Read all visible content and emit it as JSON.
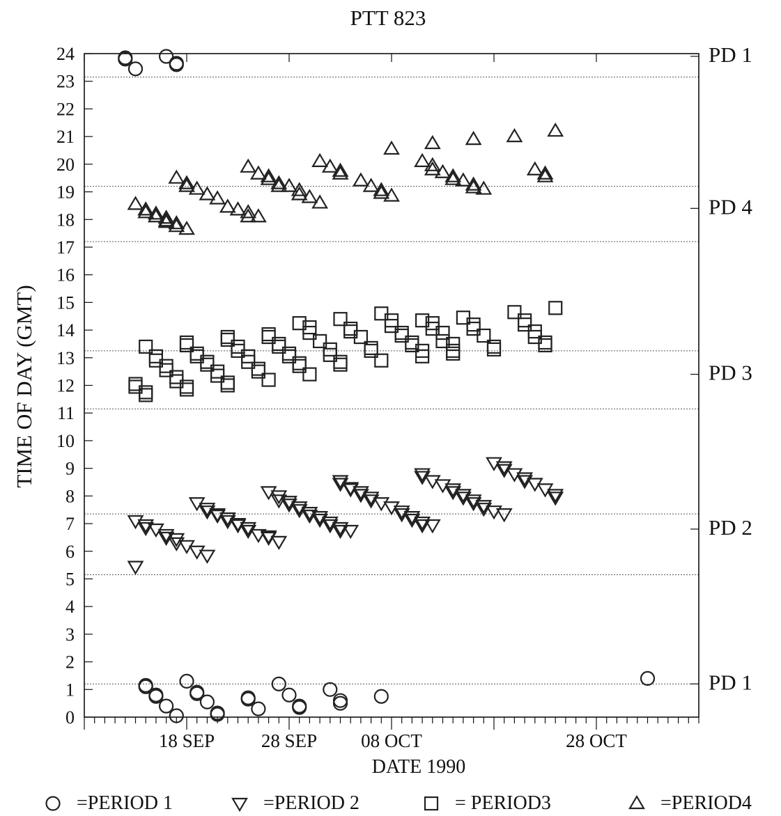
{
  "chart_data": {
    "type": "scatter",
    "title": "PTT 823",
    "xlabel": "DATE 1990",
    "ylabel": "TIME OF DAY (GMT)",
    "x_tick_labels": [
      {
        "date": "1990-09-18",
        "label": "18 SEP"
      },
      {
        "date": "1990-09-28",
        "label": "28 SEP"
      },
      {
        "date": "1990-10-08",
        "label": "08 OCT"
      },
      {
        "date": "1990-10-28",
        "label": "28 OCT"
      }
    ],
    "xlim": [
      "1990-09-08",
      "1990-11-07"
    ],
    "ylim": [
      0,
      24
    ],
    "y_ticks": [
      0,
      1,
      2,
      3,
      4,
      5,
      6,
      7,
      8,
      9,
      10,
      11,
      12,
      13,
      14,
      15,
      16,
      17,
      18,
      19,
      20,
      21,
      22,
      23,
      24
    ],
    "period_boundaries": [
      1.2,
      5.15,
      7.35,
      11.15,
      13.25,
      17.2,
      19.2,
      23.15
    ],
    "right_labels": [
      {
        "label": "PD 1",
        "y": 23.7
      },
      {
        "label": "PD 4",
        "y": 18.2
      },
      {
        "label": "PD 3",
        "y": 12.2
      },
      {
        "label": "PD 2",
        "y": 6.6
      },
      {
        "label": "PD 1",
        "y": 1.0
      }
    ],
    "legend": [
      {
        "symbol": "○",
        "text": "=PERIOD 1"
      },
      {
        "symbol": "▽",
        "text": "=PERIOD 2"
      },
      {
        "symbol": "□",
        "text": "= PERIOD3"
      },
      {
        "symbol": "△",
        "text": "=PERIOD4"
      }
    ],
    "legend_position": "bottom",
    "series": [
      {
        "name": "PERIOD 1",
        "marker": "circle",
        "points": [
          [
            "1990-09-12",
            23.85
          ],
          [
            "1990-09-12",
            23.8
          ],
          [
            "1990-09-13",
            23.45
          ],
          [
            "1990-09-16",
            23.9
          ],
          [
            "1990-09-17",
            23.65
          ],
          [
            "1990-09-17",
            23.6
          ],
          [
            "1990-09-14",
            1.15
          ],
          [
            "1990-09-14",
            1.1
          ],
          [
            "1990-09-15",
            0.8
          ],
          [
            "1990-09-15",
            0.75
          ],
          [
            "1990-09-16",
            0.4
          ],
          [
            "1990-09-17",
            0.05
          ],
          [
            "1990-09-18",
            1.3
          ],
          [
            "1990-09-19",
            0.9
          ],
          [
            "1990-09-19",
            0.85
          ],
          [
            "1990-09-20",
            0.55
          ],
          [
            "1990-09-21",
            0.15
          ],
          [
            "1990-09-21",
            0.1
          ],
          [
            "1990-09-24",
            0.7
          ],
          [
            "1990-09-24",
            0.65
          ],
          [
            "1990-09-25",
            0.3
          ],
          [
            "1990-09-27",
            1.2
          ],
          [
            "1990-09-28",
            0.8
          ],
          [
            "1990-09-29",
            0.4
          ],
          [
            "1990-09-29",
            0.35
          ],
          [
            "1990-10-02",
            1.0
          ],
          [
            "1990-10-03",
            0.6
          ],
          [
            "1990-10-03",
            0.5
          ],
          [
            "1990-10-07",
            0.75
          ],
          [
            "1990-11-02",
            1.4
          ]
        ]
      },
      {
        "name": "PERIOD 2",
        "marker": "triangle-down",
        "points": [
          [
            "1990-09-13",
            5.45
          ],
          [
            "1990-09-13",
            7.1
          ],
          [
            "1990-09-14",
            6.95
          ],
          [
            "1990-09-14",
            6.85
          ],
          [
            "1990-09-15",
            6.8
          ],
          [
            "1990-09-16",
            6.6
          ],
          [
            "1990-09-16",
            6.5
          ],
          [
            "1990-09-17",
            6.45
          ],
          [
            "1990-09-17",
            6.3
          ],
          [
            "1990-09-18",
            6.2
          ],
          [
            "1990-09-19",
            6.0
          ],
          [
            "1990-09-20",
            5.85
          ],
          [
            "1990-09-19",
            7.75
          ],
          [
            "1990-09-20",
            7.55
          ],
          [
            "1990-09-20",
            7.45
          ],
          [
            "1990-09-21",
            7.35
          ],
          [
            "1990-09-21",
            7.3
          ],
          [
            "1990-09-22",
            7.2
          ],
          [
            "1990-09-22",
            7.1
          ],
          [
            "1990-09-23",
            7.0
          ],
          [
            "1990-09-23",
            6.95
          ],
          [
            "1990-09-24",
            6.85
          ],
          [
            "1990-09-24",
            6.75
          ],
          [
            "1990-09-25",
            6.6
          ],
          [
            "1990-09-26",
            6.55
          ],
          [
            "1990-09-26",
            6.5
          ],
          [
            "1990-09-27",
            6.35
          ],
          [
            "1990-09-26",
            8.15
          ],
          [
            "1990-09-27",
            8.0
          ],
          [
            "1990-09-27",
            7.85
          ],
          [
            "1990-09-28",
            7.8
          ],
          [
            "1990-09-28",
            7.7
          ],
          [
            "1990-09-29",
            7.6
          ],
          [
            "1990-09-29",
            7.5
          ],
          [
            "1990-09-30",
            7.4
          ],
          [
            "1990-09-30",
            7.3
          ],
          [
            "1990-10-01",
            7.25
          ],
          [
            "1990-10-01",
            7.15
          ],
          [
            "1990-10-02",
            7.05
          ],
          [
            "1990-10-02",
            6.95
          ],
          [
            "1990-10-03",
            6.85
          ],
          [
            "1990-10-03",
            6.75
          ],
          [
            "1990-10-04",
            6.75
          ],
          [
            "1990-10-03",
            8.55
          ],
          [
            "1990-10-03",
            8.45
          ],
          [
            "1990-10-04",
            8.3
          ],
          [
            "1990-10-04",
            8.25
          ],
          [
            "1990-10-05",
            8.15
          ],
          [
            "1990-10-05",
            8.05
          ],
          [
            "1990-10-06",
            7.95
          ],
          [
            "1990-10-06",
            7.85
          ],
          [
            "1990-10-07",
            7.75
          ],
          [
            "1990-10-08",
            7.6
          ],
          [
            "1990-10-09",
            7.45
          ],
          [
            "1990-10-09",
            7.35
          ],
          [
            "1990-10-10",
            7.25
          ],
          [
            "1990-10-10",
            7.15
          ],
          [
            "1990-10-11",
            7.05
          ],
          [
            "1990-10-11",
            6.95
          ],
          [
            "1990-10-12",
            6.95
          ],
          [
            "1990-10-11",
            8.8
          ],
          [
            "1990-10-11",
            8.7
          ],
          [
            "1990-10-12",
            8.55
          ],
          [
            "1990-10-13",
            8.4
          ],
          [
            "1990-10-14",
            8.25
          ],
          [
            "1990-10-14",
            8.15
          ],
          [
            "1990-10-15",
            8.05
          ],
          [
            "1990-10-15",
            7.95
          ],
          [
            "1990-10-16",
            7.85
          ],
          [
            "1990-10-16",
            7.75
          ],
          [
            "1990-10-17",
            7.65
          ],
          [
            "1990-10-17",
            7.55
          ],
          [
            "1990-10-18",
            7.45
          ],
          [
            "1990-10-19",
            7.35
          ],
          [
            "1990-10-18",
            9.2
          ],
          [
            "1990-10-19",
            9.05
          ],
          [
            "1990-10-19",
            8.95
          ],
          [
            "1990-10-20",
            8.8
          ],
          [
            "1990-10-21",
            8.65
          ],
          [
            "1990-10-21",
            8.55
          ],
          [
            "1990-10-22",
            8.45
          ],
          [
            "1990-10-23",
            8.25
          ],
          [
            "1990-10-24",
            8.05
          ],
          [
            "1990-10-24",
            7.95
          ]
        ]
      },
      {
        "name": "PERIOD3",
        "marker": "square",
        "points": [
          [
            "1990-09-13",
            12.05
          ],
          [
            "1990-09-13",
            11.95
          ],
          [
            "1990-09-14",
            11.75
          ],
          [
            "1990-09-14",
            11.65
          ],
          [
            "1990-09-14",
            13.4
          ],
          [
            "1990-09-15",
            13.05
          ],
          [
            "1990-09-15",
            12.9
          ],
          [
            "1990-09-16",
            12.7
          ],
          [
            "1990-09-16",
            12.55
          ],
          [
            "1990-09-17",
            12.3
          ],
          [
            "1990-09-17",
            12.15
          ],
          [
            "1990-09-18",
            11.95
          ],
          [
            "1990-09-18",
            11.85
          ],
          [
            "1990-09-18",
            13.55
          ],
          [
            "1990-09-18",
            13.45
          ],
          [
            "1990-09-19",
            13.15
          ],
          [
            "1990-09-19",
            13.05
          ],
          [
            "1990-09-20",
            12.85
          ],
          [
            "1990-09-20",
            12.75
          ],
          [
            "1990-09-21",
            12.5
          ],
          [
            "1990-09-21",
            12.35
          ],
          [
            "1990-09-22",
            12.1
          ],
          [
            "1990-09-22",
            12.0
          ],
          [
            "1990-09-22",
            13.75
          ],
          [
            "1990-09-22",
            13.65
          ],
          [
            "1990-09-23",
            13.4
          ],
          [
            "1990-09-23",
            13.25
          ],
          [
            "1990-09-24",
            13.05
          ],
          [
            "1990-09-24",
            12.85
          ],
          [
            "1990-09-25",
            12.6
          ],
          [
            "1990-09-25",
            12.5
          ],
          [
            "1990-09-26",
            12.2
          ],
          [
            "1990-09-26",
            13.85
          ],
          [
            "1990-09-26",
            13.75
          ],
          [
            "1990-09-27",
            13.5
          ],
          [
            "1990-09-27",
            13.4
          ],
          [
            "1990-09-28",
            13.15
          ],
          [
            "1990-09-28",
            13.05
          ],
          [
            "1990-09-29",
            12.8
          ],
          [
            "1990-09-29",
            12.7
          ],
          [
            "1990-09-30",
            12.4
          ],
          [
            "1990-09-29",
            14.25
          ],
          [
            "1990-09-30",
            14.1
          ],
          [
            "1990-09-30",
            13.9
          ],
          [
            "1990-10-01",
            13.6
          ],
          [
            "1990-10-02",
            13.3
          ],
          [
            "1990-10-02",
            13.1
          ],
          [
            "1990-10-03",
            12.85
          ],
          [
            "1990-10-03",
            12.75
          ],
          [
            "1990-10-03",
            14.4
          ],
          [
            "1990-10-04",
            14.05
          ],
          [
            "1990-10-04",
            13.95
          ],
          [
            "1990-10-05",
            13.75
          ],
          [
            "1990-10-06",
            13.35
          ],
          [
            "1990-10-06",
            13.25
          ],
          [
            "1990-10-07",
            12.9
          ],
          [
            "1990-10-07",
            14.6
          ],
          [
            "1990-10-08",
            14.35
          ],
          [
            "1990-10-08",
            14.15
          ],
          [
            "1990-10-09",
            13.9
          ],
          [
            "1990-10-09",
            13.8
          ],
          [
            "1990-10-10",
            13.55
          ],
          [
            "1990-10-10",
            13.45
          ],
          [
            "1990-10-11",
            13.25
          ],
          [
            "1990-10-11",
            13.05
          ],
          [
            "1990-10-11",
            14.35
          ],
          [
            "1990-10-12",
            14.25
          ],
          [
            "1990-10-12",
            14.05
          ],
          [
            "1990-10-13",
            13.9
          ],
          [
            "1990-10-13",
            13.6
          ],
          [
            "1990-10-14",
            13.5
          ],
          [
            "1990-10-14",
            13.25
          ],
          [
            "1990-10-14",
            13.15
          ],
          [
            "1990-10-15",
            14.45
          ],
          [
            "1990-10-16",
            14.2
          ],
          [
            "1990-10-16",
            14.05
          ],
          [
            "1990-10-17",
            13.8
          ],
          [
            "1990-10-18",
            13.4
          ],
          [
            "1990-10-18",
            13.3
          ],
          [
            "1990-10-20",
            14.65
          ],
          [
            "1990-10-21",
            14.35
          ],
          [
            "1990-10-21",
            14.2
          ],
          [
            "1990-10-22",
            13.95
          ],
          [
            "1990-10-22",
            13.75
          ],
          [
            "1990-10-23",
            13.55
          ],
          [
            "1990-10-23",
            13.45
          ],
          [
            "1990-10-24",
            14.8
          ]
        ]
      },
      {
        "name": "PERIOD4",
        "marker": "triangle-up",
        "points": [
          [
            "1990-09-13",
            18.55
          ],
          [
            "1990-09-14",
            18.35
          ],
          [
            "1990-09-14",
            18.25
          ],
          [
            "1990-09-15",
            18.2
          ],
          [
            "1990-09-15",
            18.1
          ],
          [
            "1990-09-16",
            18.05
          ],
          [
            "1990-09-16",
            17.95
          ],
          [
            "1990-09-16",
            17.9
          ],
          [
            "1990-09-17",
            17.85
          ],
          [
            "1990-09-17",
            17.75
          ],
          [
            "1990-09-18",
            17.65
          ],
          [
            "1990-09-17",
            19.5
          ],
          [
            "1990-09-18",
            19.3
          ],
          [
            "1990-09-18",
            19.2
          ],
          [
            "1990-09-19",
            19.1
          ],
          [
            "1990-09-20",
            18.9
          ],
          [
            "1990-09-21",
            18.75
          ],
          [
            "1990-09-22",
            18.45
          ],
          [
            "1990-09-23",
            18.35
          ],
          [
            "1990-09-24",
            18.25
          ],
          [
            "1990-09-24",
            18.1
          ],
          [
            "1990-09-25",
            18.1
          ],
          [
            "1990-09-24",
            19.9
          ],
          [
            "1990-09-25",
            19.65
          ],
          [
            "1990-09-26",
            19.55
          ],
          [
            "1990-09-26",
            19.45
          ],
          [
            "1990-09-27",
            19.3
          ],
          [
            "1990-09-27",
            19.2
          ],
          [
            "1990-09-28",
            19.2
          ],
          [
            "1990-09-29",
            19.05
          ],
          [
            "1990-09-29",
            18.9
          ],
          [
            "1990-09-30",
            18.8
          ],
          [
            "1990-10-01",
            18.6
          ],
          [
            "1990-10-01",
            20.1
          ],
          [
            "1990-10-02",
            19.9
          ],
          [
            "1990-10-03",
            19.75
          ],
          [
            "1990-10-03",
            19.65
          ],
          [
            "1990-10-05",
            19.4
          ],
          [
            "1990-10-06",
            19.2
          ],
          [
            "1990-10-07",
            19.05
          ],
          [
            "1990-10-07",
            18.95
          ],
          [
            "1990-10-08",
            18.85
          ],
          [
            "1990-10-08",
            20.55
          ],
          [
            "1990-10-11",
            20.1
          ],
          [
            "1990-10-12",
            20.75
          ],
          [
            "1990-10-12",
            19.95
          ],
          [
            "1990-10-12",
            19.8
          ],
          [
            "1990-10-13",
            19.7
          ],
          [
            "1990-10-14",
            19.55
          ],
          [
            "1990-10-14",
            19.45
          ],
          [
            "1990-10-15",
            19.4
          ],
          [
            "1990-10-16",
            19.25
          ],
          [
            "1990-10-16",
            19.15
          ],
          [
            "1990-10-17",
            19.1
          ],
          [
            "1990-10-16",
            20.9
          ],
          [
            "1990-10-20",
            21.0
          ],
          [
            "1990-10-22",
            19.8
          ],
          [
            "1990-10-23",
            19.65
          ],
          [
            "1990-10-23",
            19.55
          ],
          [
            "1990-10-24",
            21.2
          ]
        ]
      }
    ]
  }
}
